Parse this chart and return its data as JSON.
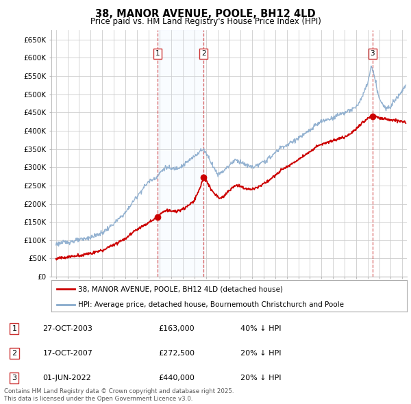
{
  "title": "38, MANOR AVENUE, POOLE, BH12 4LD",
  "subtitle": "Price paid vs. HM Land Registry's House Price Index (HPI)",
  "ytick_labels": [
    "£0",
    "£50K",
    "£100K",
    "£150K",
    "£200K",
    "£250K",
    "£300K",
    "£350K",
    "£400K",
    "£450K",
    "£500K",
    "£550K",
    "£600K",
    "£650K"
  ],
  "ytick_values": [
    0,
    50000,
    100000,
    150000,
    200000,
    250000,
    300000,
    350000,
    400000,
    450000,
    500000,
    550000,
    600000,
    650000
  ],
  "xlim_start": 1994.6,
  "xlim_end": 2025.4,
  "ylim_min": 0,
  "ylim_max": 675000,
  "purchases": [
    {
      "date_num": 2003.82,
      "price": 163000,
      "label": "1"
    },
    {
      "date_num": 2007.79,
      "price": 272500,
      "label": "2"
    },
    {
      "date_num": 2022.42,
      "price": 440000,
      "label": "3"
    }
  ],
  "sale_annotations": [
    {
      "num": "1",
      "date": "27-OCT-2003",
      "price": "£163,000",
      "pct": "40% ↓ HPI"
    },
    {
      "num": "2",
      "date": "17-OCT-2007",
      "price": "£272,500",
      "pct": "20% ↓ HPI"
    },
    {
      "num": "3",
      "date": "01-JUN-2022",
      "price": "£440,000",
      "pct": "20% ↓ HPI"
    }
  ],
  "legend_line1": "38, MANOR AVENUE, POOLE, BH12 4LD (detached house)",
  "legend_line2": "HPI: Average price, detached house, Bournemouth Christchurch and Poole",
  "footer": "Contains HM Land Registry data © Crown copyright and database right 2025.\nThis data is licensed under the Open Government Licence v3.0.",
  "line_color_red": "#cc0000",
  "line_color_blue": "#88aacc",
  "vline_color": "#cc3333",
  "grid_color": "#cccccc",
  "shade_color": "#ddeeff",
  "background_color": "#ffffff"
}
